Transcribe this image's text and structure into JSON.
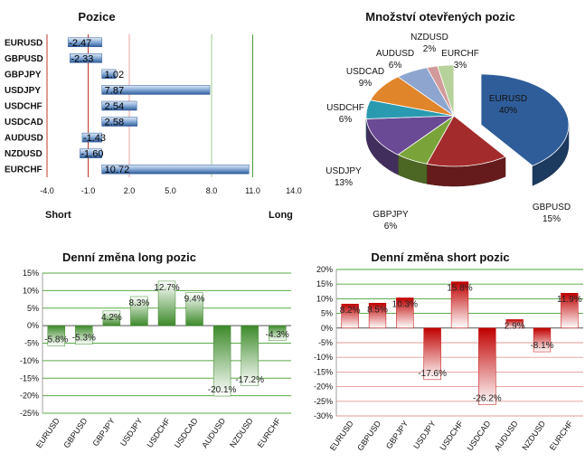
{
  "chart_data": [
    {
      "id": "positions",
      "type": "bar",
      "orientation": "horizontal",
      "title": "Pozice",
      "categories": [
        "EURUSD",
        "GBPUSD",
        "GBPJPY",
        "USDJPY",
        "USDCHF",
        "USDCAD",
        "AUDUSD",
        "NZDUSD",
        "EURCHF"
      ],
      "values": [
        -2.47,
        -2.33,
        1.02,
        7.87,
        2.54,
        2.58,
        -1.43,
        -1.6,
        10.72
      ],
      "value_labels": [
        "-2.47",
        "-2.33",
        "1.02",
        "7.87",
        "2.54",
        "2.58",
        "-1.43",
        "-1.60",
        "10.72"
      ],
      "xlim": [
        -4,
        14
      ],
      "xticks": [
        -4,
        -1,
        2,
        5,
        8,
        11,
        14
      ],
      "xtick_labels": [
        "-4.0",
        "-1.0",
        "2.0",
        "5.0",
        "8.0",
        "11.0",
        "14.0"
      ],
      "left_label": "Short",
      "right_label": "Long",
      "reference_lines": [
        {
          "value": -1,
          "color": "#c0392b"
        },
        {
          "value": 2,
          "color": "#e8a0a0"
        },
        {
          "value": 8,
          "color": "#9ccc8c"
        },
        {
          "value": 11,
          "color": "#4a9a3a"
        }
      ],
      "bar_color": "#4f79b0"
    },
    {
      "id": "open-positions",
      "type": "pie",
      "title": "Množství otevřených pozic",
      "slices": [
        {
          "label": "EURUSD",
          "pct": 40,
          "pct_label": "40%",
          "color": "#2f5d9a"
        },
        {
          "label": "GBPUSD",
          "pct": 15,
          "pct_label": "15%",
          "color": "#a32b2b"
        },
        {
          "label": "GBPJPY",
          "pct": 6,
          "pct_label": "6%",
          "color": "#7aa43a"
        },
        {
          "label": "USDJPY",
          "pct": 13,
          "pct_label": "13%",
          "color": "#6a4a95"
        },
        {
          "label": "USDCHF",
          "pct": 6,
          "pct_label": "6%",
          "color": "#2a9ab0"
        },
        {
          "label": "USDCAD",
          "pct": 9,
          "pct_label": "9%",
          "color": "#e0852a"
        },
        {
          "label": "AUDUSD",
          "pct": 6,
          "pct_label": "6%",
          "color": "#8ea6cf"
        },
        {
          "label": "NZDUSD",
          "pct": 2,
          "pct_label": "2%",
          "color": "#d29a9a"
        },
        {
          "label": "EURCHF",
          "pct": 3,
          "pct_label": "3%",
          "color": "#b6d29a"
        }
      ]
    },
    {
      "id": "daily-long",
      "type": "bar",
      "title": "Denní změna long pozic",
      "categories": [
        "EURUSD",
        "GBPUSD",
        "GBPJPY",
        "USDJPY",
        "USDCHF",
        "USDCAD",
        "AUDUSD",
        "NZDUSD",
        "EURCHF"
      ],
      "values": [
        -5.8,
        -5.3,
        4.2,
        8.3,
        12.7,
        9.4,
        -20.1,
        -17.2,
        -4.3
      ],
      "value_labels": [
        "-5.8%",
        "-5.3%",
        "4.2%",
        "8.3%",
        "12.7%",
        "9.4%",
        "-20.1%",
        "-17.2%",
        "-4.3%"
      ],
      "ylim": [
        -25,
        15
      ],
      "yticks": [
        15,
        10,
        5,
        0,
        -5,
        -10,
        -15,
        -20,
        -25
      ],
      "ytick_labels": [
        "15%",
        "10%",
        "5%",
        "0%",
        "-5%",
        "-10%",
        "-15%",
        "-20%",
        "-25%"
      ],
      "bar_color": "#3d8a2a",
      "grid": true,
      "grid_color": "#5aaa45"
    },
    {
      "id": "daily-short",
      "type": "bar",
      "title": "Denní změna short pozic",
      "categories": [
        "EURUSD",
        "GBPUSD",
        "GBPJPY",
        "USDJPY",
        "USDCHF",
        "USDCAD",
        "AUDUSD",
        "NZDUSD",
        "EURCHF"
      ],
      "values": [
        8.2,
        8.5,
        10.3,
        -17.6,
        15.8,
        -26.2,
        2.9,
        -8.1,
        11.9
      ],
      "value_labels": [
        "8.2%",
        "8.5%",
        "10.3%",
        "-17.6%",
        "15.8%",
        "-26.2%",
        "2.9%",
        "-8.1%",
        "11.9%"
      ],
      "ylim": [
        -30,
        20
      ],
      "yticks": [
        20,
        15,
        10,
        5,
        0,
        -5,
        -10,
        -15,
        -20,
        -25,
        -30
      ],
      "ytick_labels": [
        "20%",
        "15%",
        "10%",
        "5%",
        "0%",
        "-5%",
        "-10%",
        "-15%",
        "-20%",
        "-25%",
        "-30%"
      ],
      "bar_color": "#c00000",
      "grid": true,
      "grid_color": "#4aa53a",
      "grid_color_negative": "#e39a9a"
    }
  ]
}
